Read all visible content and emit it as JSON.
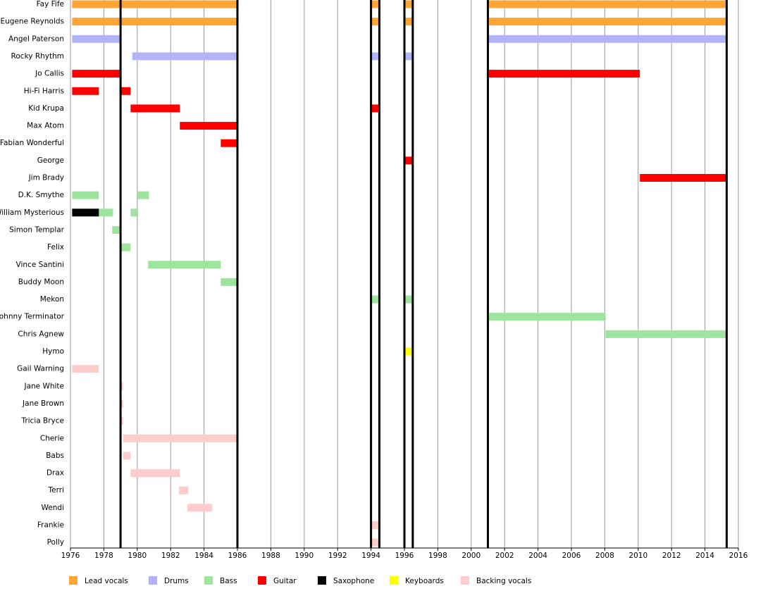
{
  "chart_data": {
    "type": "timeline",
    "categories": [
      "Fay Fife",
      "Eugene Reynolds",
      "Angel Paterson",
      "Rocky Rhythm",
      "Jo Callis",
      "Hi-Fi Harris",
      "Kid Krupa",
      "Max Atom",
      "Fabian Wonderful",
      "George",
      "Jim Brady",
      "D.K. Smythe",
      "William Mysterious",
      "Simon Templar",
      "Felix",
      "Vince Santini",
      "Buddy Moon",
      "Mekon",
      "Johnny Terminator",
      "Chris Agnew",
      "Hymo",
      "Gail Warning",
      "Jane White",
      "Jane Brown",
      "Tricia Bryce",
      "Cherie",
      "Babs",
      "Drax",
      "Terri",
      "Wendi",
      "Frankie",
      "Polly"
    ],
    "series": [
      {
        "name": "Lead vocals",
        "color": "#ffa533",
        "values": [
          [
            [
              1976.1,
              1986
            ],
            [
              1994,
              1994.5
            ],
            [
              1996,
              1996.5
            ],
            [
              2001,
              2015.3
            ]
          ],
          [
            [
              1976.1,
              1986
            ],
            [
              1994,
              1994.5
            ],
            [
              1996,
              1996.5
            ],
            [
              2001,
              2015.3
            ]
          ],
          null,
          null,
          null,
          null,
          null,
          null,
          null,
          null,
          null,
          null,
          null,
          null,
          null,
          null,
          null,
          null,
          null,
          null,
          null,
          null,
          null,
          null,
          null,
          null,
          null,
          null,
          null,
          null,
          null,
          null
        ]
      },
      {
        "name": "Drums",
        "color": "#b3b3f8",
        "values": [
          null,
          null,
          [
            [
              1976.1,
              1979
            ],
            [
              2001,
              2015.3
            ]
          ],
          [
            [
              1979.7,
              1986
            ],
            [
              1994,
              1994.5
            ],
            [
              1996,
              1996.5
            ]
          ],
          null,
          null,
          null,
          null,
          null,
          null,
          null,
          null,
          null,
          null,
          null,
          null,
          null,
          null,
          null,
          null,
          null,
          null,
          null,
          null,
          null,
          null,
          null,
          null,
          null,
          null,
          null,
          null
        ]
      },
      {
        "name": "Bass",
        "color": "#9ee49e",
        "values": [
          null,
          null,
          null,
          null,
          null,
          null,
          null,
          null,
          null,
          null,
          null,
          [
            [
              1976.1,
              1977.7
            ],
            [
              1980,
              1980.7
            ]
          ],
          [
            [
              1977.7,
              1978.55
            ],
            [
              1979.6,
              1980.05
            ]
          ],
          [
            [
              1978.5,
              1979.05
            ]
          ],
          [
            [
              1979.05,
              1979.6
            ]
          ],
          [
            [
              1980.65,
              1985
            ]
          ],
          [
            [
              1985,
              1986
            ]
          ],
          [
            [
              1994,
              1994.5
            ],
            [
              1996,
              1996.5
            ]
          ],
          [
            [
              2001,
              2008.05
            ]
          ],
          [
            [
              2008.05,
              2015.3
            ]
          ],
          null,
          null,
          null,
          null,
          null,
          null,
          null,
          null,
          null,
          null,
          null,
          null
        ]
      },
      {
        "name": "Guitar",
        "color": "#ff0000",
        "values": [
          null,
          null,
          null,
          null,
          [
            [
              1976.1,
              1979
            ],
            [
              2001,
              2010.1
            ]
          ],
          [
            [
              1976.1,
              1977.7
            ],
            [
              1979,
              1979.6
            ]
          ],
          [
            [
              1979.6,
              1982.55
            ],
            [
              1994,
              1994.5
            ]
          ],
          [
            [
              1982.55,
              1986
            ]
          ],
          [
            [
              1985,
              1986
            ]
          ],
          [
            [
              1996,
              1996.5
            ]
          ],
          [
            [
              2010.1,
              2015.3
            ]
          ],
          null,
          null,
          null,
          null,
          null,
          null,
          null,
          null,
          null,
          null,
          null,
          null,
          null,
          null,
          null,
          null,
          null,
          null,
          null,
          null,
          null
        ]
      },
      {
        "name": "Saxophone",
        "color": "#000000",
        "values": [
          null,
          null,
          null,
          null,
          null,
          null,
          null,
          null,
          null,
          null,
          null,
          null,
          [
            [
              1976.1,
              1977.7
            ]
          ],
          null,
          null,
          null,
          null,
          null,
          null,
          null,
          null,
          null,
          null,
          null,
          null,
          null,
          null,
          null,
          null,
          null,
          null,
          null
        ]
      },
      {
        "name": "Keyboards",
        "color": "#ffff00",
        "values": [
          null,
          null,
          null,
          null,
          null,
          null,
          null,
          null,
          null,
          null,
          null,
          null,
          null,
          null,
          null,
          null,
          null,
          null,
          null,
          null,
          [
            [
              1996,
              1996.5
            ]
          ],
          null,
          null,
          null,
          null,
          null,
          null,
          null,
          null,
          null,
          null,
          null
        ]
      },
      {
        "name": "Backing vocals",
        "color": "#ffcccc",
        "values": [
          null,
          null,
          null,
          null,
          null,
          null,
          null,
          null,
          null,
          null,
          null,
          null,
          null,
          null,
          null,
          null,
          null,
          null,
          null,
          null,
          null,
          [
            [
              1976.1,
              1977.7
            ]
          ],
          [
            [
              1979,
              1979.15
            ]
          ],
          [
            [
              1979,
              1979.15
            ]
          ],
          [
            [
              1979,
              1979.15
            ]
          ],
          [
            [
              1979.15,
              1986
            ]
          ],
          [
            [
              1979.15,
              1979.6
            ]
          ],
          [
            [
              1979.6,
              1982.55
            ]
          ],
          [
            [
              1982.5,
              1983.05
            ]
          ],
          [
            [
              1983,
              1984.5
            ]
          ],
          [
            [
              1994,
              1994.5
            ]
          ],
          [
            [
              1994,
              1994.5
            ]
          ]
        ]
      }
    ],
    "events": [
      1979,
      1986,
      1994,
      1994.5,
      1996,
      1996.5,
      2001,
      2015.3
    ],
    "xlim": [
      1976,
      2016
    ],
    "xticks": [
      1976,
      1978,
      1980,
      1982,
      1984,
      1986,
      1988,
      1990,
      1992,
      1994,
      1996,
      1998,
      2000,
      2002,
      2004,
      2006,
      2008,
      2010,
      2012,
      2014,
      2016
    ],
    "grid": true
  }
}
